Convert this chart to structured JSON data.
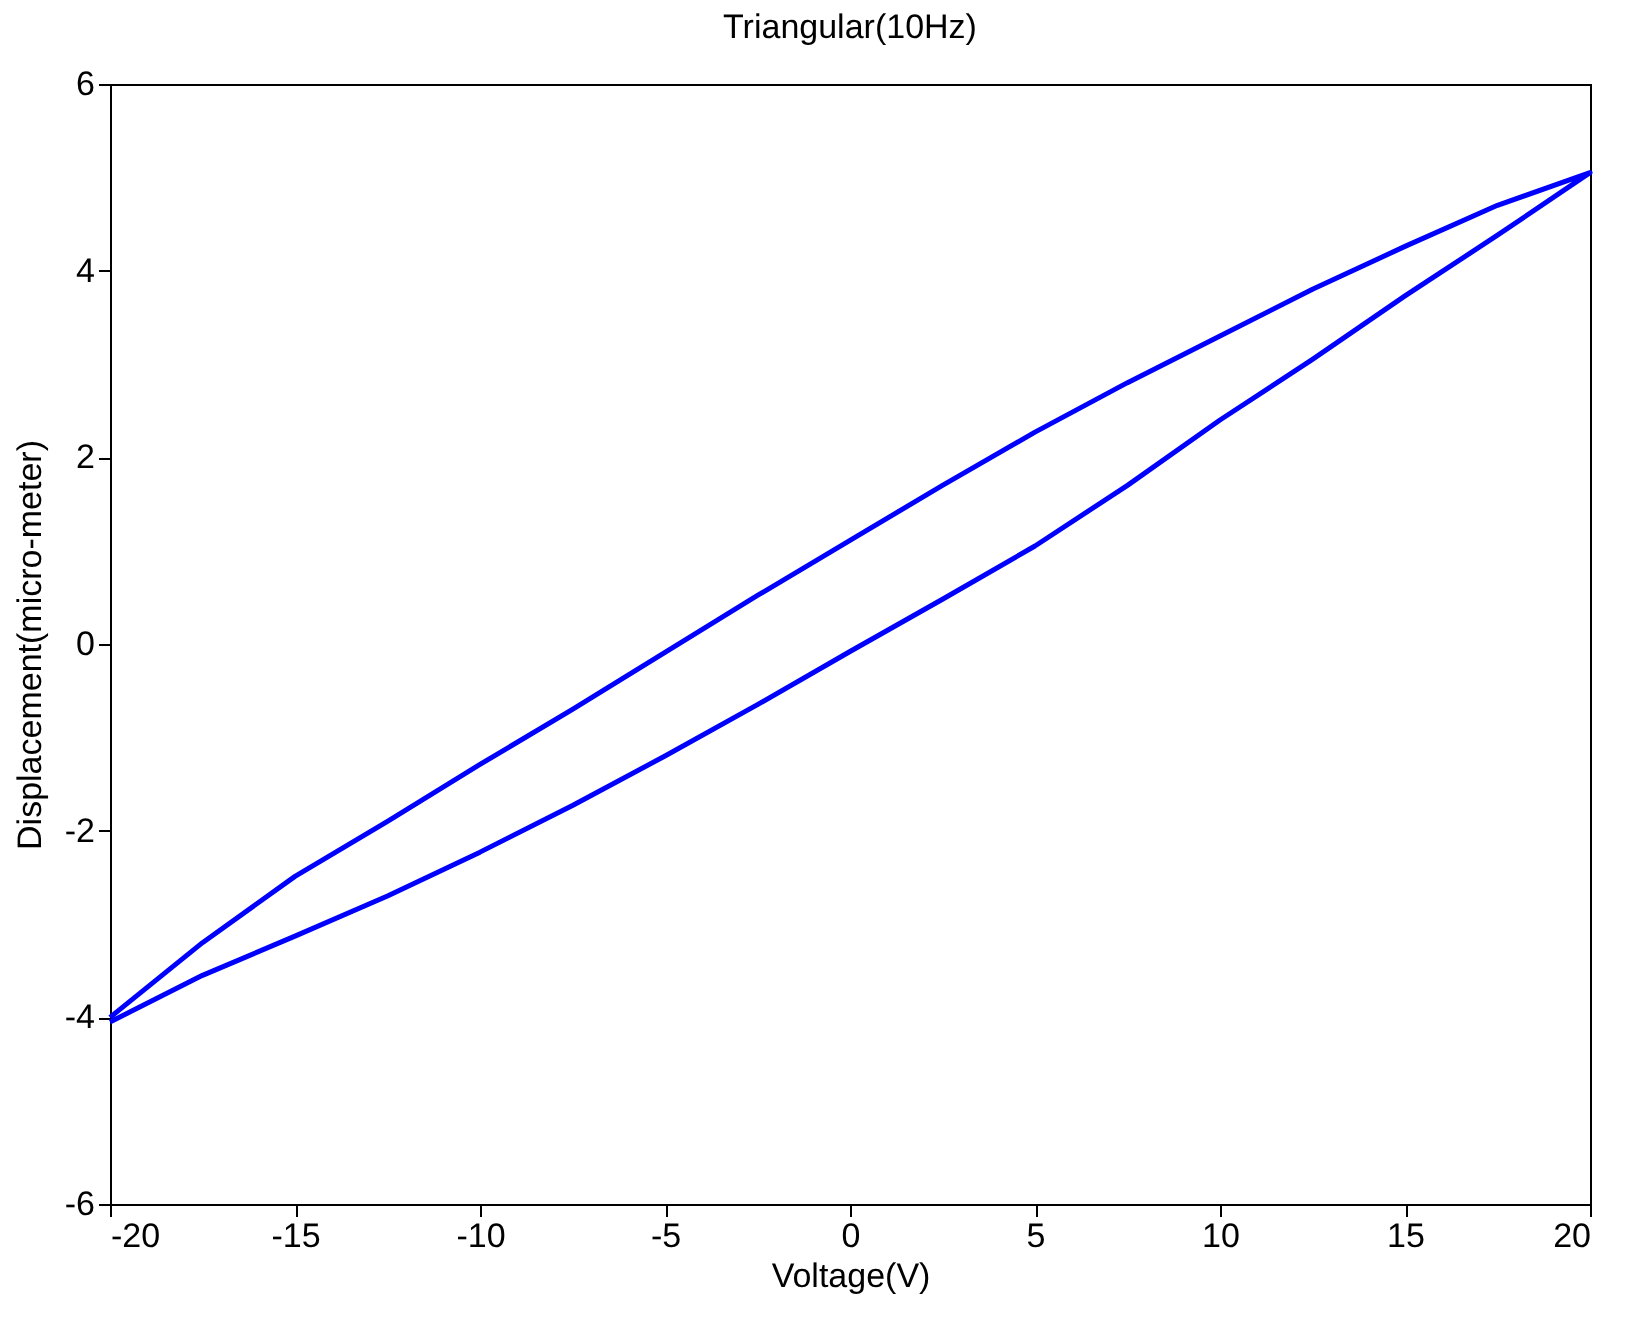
{
  "chart_data": {
    "type": "line",
    "title": "Triangular(10Hz)",
    "xlabel": "Voltage(V)",
    "ylabel": "Displacement(micro-meter)",
    "series": [
      {
        "color": "#0000ff",
        "x": [
          -20,
          -17.5,
          -15,
          -12.5,
          -10,
          -7.5,
          -5,
          -2.5,
          0,
          2.5,
          5,
          7.5,
          10,
          12.5,
          15,
          17.5,
          20,
          17.5,
          15,
          12.5,
          10,
          7.5,
          5,
          2.5,
          0,
          -2.5,
          -5,
          -7.5,
          -10,
          -12.5,
          -15,
          -17.5,
          -20
        ],
        "values": [
          -4.05,
          -3.55,
          -3.13,
          -2.7,
          -2.23,
          -1.73,
          -1.2,
          -0.65,
          -0.08,
          0.48,
          1.05,
          1.7,
          2.4,
          3.05,
          3.73,
          4.38,
          5.05,
          4.7,
          4.26,
          3.8,
          3.3,
          2.8,
          2.27,
          1.7,
          1.11,
          0.52,
          -0.09,
          -0.7,
          -1.29,
          -1.9,
          -2.49,
          -3.2,
          -4.0
        ]
      }
    ],
    "xlim": [
      -20,
      20
    ],
    "xticks": [
      -20,
      -15,
      -10,
      -5,
      0,
      5,
      10,
      15,
      20
    ],
    "ylim": [
      -6,
      6
    ],
    "yticks": [
      -6,
      -4,
      -2,
      0,
      2,
      4,
      6
    ],
    "grid": false,
    "marker": "none",
    "line_style": "solid"
  }
}
